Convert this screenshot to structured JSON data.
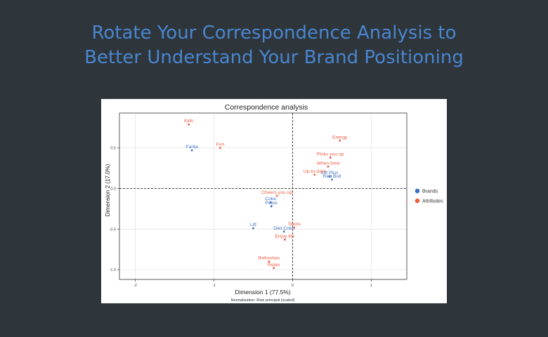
{
  "headline": {
    "line1": "Rotate Your Correspondence Analysis to",
    "line2": "Better Understand Your Brand Positioning"
  },
  "colors": {
    "background": "#2e353b",
    "headline": "#4a86d0",
    "brands": "#3b6fc2",
    "attributes": "#f05a40",
    "grid": "#e6e6e6"
  },
  "chart_data": {
    "type": "scatter",
    "title": "Correspondence analysis",
    "xlabel": "Dimension 1 (77.5%)",
    "ylabel": "Dimension 2 (17.0%)",
    "footnote": "Normalization: Row principal (scaled)",
    "xlim": [
      -2.2,
      1.45
    ],
    "ylim": [
      -1.12,
      0.93
    ],
    "xticks": [
      -2,
      -1,
      0,
      1
    ],
    "yticks": [
      -1.0,
      -0.5,
      0.0,
      0.5
    ],
    "grid": true,
    "reference_lines": "dashed lines at x=0 and y=0",
    "legend_position": "right",
    "series": [
      {
        "name": "Brands",
        "color": "#3b6fc2",
        "points": [
          {
            "label": "Fanta",
            "x": -1.28,
            "y": 0.47
          },
          {
            "label": "Lift Plus",
            "x": 0.47,
            "y": 0.15
          },
          {
            "label": "Red Bull",
            "x": 0.5,
            "y": 0.11
          },
          {
            "label": "Coke",
            "x": -0.28,
            "y": -0.17
          },
          {
            "label": "Pepsi",
            "x": -0.27,
            "y": -0.22
          },
          {
            "label": "Lift",
            "x": -0.5,
            "y": -0.49
          },
          {
            "label": "Diet Coke",
            "x": -0.11,
            "y": -0.53
          }
        ]
      },
      {
        "name": "Attributes",
        "color": "#f05a40",
        "points": [
          {
            "label": "Kids",
            "x": -1.32,
            "y": 0.79
          },
          {
            "label": "Fun",
            "x": -0.92,
            "y": 0.5
          },
          {
            "label": "Energy",
            "x": 0.6,
            "y": 0.59
          },
          {
            "label": "Picks you up",
            "x": 0.48,
            "y": 0.38
          },
          {
            "label": "When tired",
            "x": 0.45,
            "y": 0.27
          },
          {
            "label": "Up-to-date",
            "x": 0.28,
            "y": 0.17
          },
          {
            "label": "Cheers you up",
            "x": -0.2,
            "y": -0.09
          },
          {
            "label": "Teens",
            "x": 0.02,
            "y": -0.48
          },
          {
            "label": "Enjoy life",
            "x": -0.1,
            "y": -0.63
          },
          {
            "label": "Refreshes",
            "x": -0.3,
            "y": -0.9
          },
          {
            "label": "Relax",
            "x": -0.24,
            "y": -0.98
          }
        ]
      }
    ]
  }
}
